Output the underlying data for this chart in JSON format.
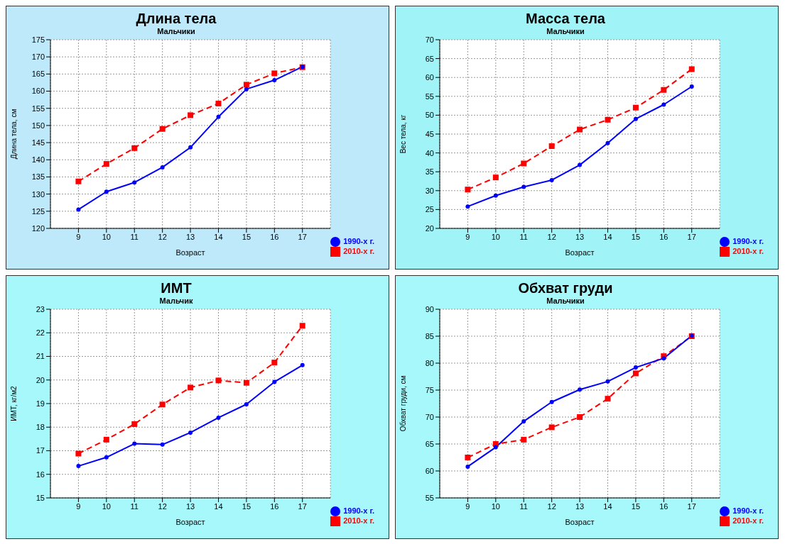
{
  "chart_data": [
    {
      "type": "line",
      "title": "Длина тела",
      "subtitle": "Мальчики",
      "xlabel": "Возраст",
      "ylabel": "Длина тела, см",
      "x": [
        9,
        10,
        11,
        12,
        13,
        14,
        15,
        16,
        17
      ],
      "xlim": [
        8,
        18
      ],
      "xticks": [
        9,
        10,
        11,
        12,
        13,
        14,
        15,
        16,
        17
      ],
      "ylim": [
        120,
        175
      ],
      "yticks": [
        120,
        125,
        130,
        135,
        140,
        145,
        150,
        155,
        160,
        165,
        170,
        175
      ],
      "grid": true,
      "legend": "bottom right",
      "series": [
        {
          "name": "1990-х г.",
          "color": "#0000ff",
          "marker": "circle",
          "line_style": "solid",
          "values": [
            125.5,
            130.7,
            133.4,
            137.8,
            143.6,
            152.5,
            160.6,
            163.2,
            167.1
          ]
        },
        {
          "name": "2010-х г.",
          "color": "#ff0000",
          "marker": "square",
          "line_style": "dashed",
          "values": [
            133.7,
            138.8,
            143.4,
            149.0,
            153.0,
            156.4,
            161.9,
            165.2,
            167.0
          ]
        }
      ]
    },
    {
      "type": "line",
      "title": "Масса тела",
      "subtitle": "Мальчики",
      "xlabel": "Возраст",
      "ylabel": "Вес тела, кг",
      "x": [
        9,
        10,
        11,
        12,
        13,
        14,
        15,
        16,
        17
      ],
      "xlim": [
        8,
        18
      ],
      "xticks": [
        9,
        10,
        11,
        12,
        13,
        14,
        15,
        16,
        17
      ],
      "ylim": [
        20,
        70
      ],
      "yticks": [
        20,
        25,
        30,
        35,
        40,
        45,
        50,
        55,
        60,
        65,
        70
      ],
      "grid": true,
      "legend": "bottom right",
      "series": [
        {
          "name": "1990-х г.",
          "color": "#0000ff",
          "marker": "circle",
          "line_style": "solid",
          "values": [
            25.8,
            28.7,
            31.0,
            32.8,
            36.8,
            42.6,
            49.0,
            52.8,
            57.6
          ]
        },
        {
          "name": "2010-х г.",
          "color": "#ff0000",
          "marker": "square",
          "line_style": "dashed",
          "values": [
            30.3,
            33.5,
            37.2,
            41.8,
            46.2,
            48.8,
            52.0,
            56.7,
            62.2
          ]
        }
      ]
    },
    {
      "type": "line",
      "title": "ИМТ",
      "subtitle": "Мальчик",
      "xlabel": "Возраст",
      "ylabel": "ИМТ, кг/м2",
      "x": [
        9,
        10,
        11,
        12,
        13,
        14,
        15,
        16,
        17
      ],
      "xlim": [
        8,
        18
      ],
      "xticks": [
        9,
        10,
        11,
        12,
        13,
        14,
        15,
        16,
        17
      ],
      "ylim": [
        15,
        23
      ],
      "yticks": [
        15,
        16,
        17,
        18,
        19,
        20,
        21,
        22,
        23
      ],
      "grid": true,
      "legend": "bottom right",
      "series": [
        {
          "name": "1990-х г.",
          "color": "#0000ff",
          "marker": "circle",
          "line_style": "solid",
          "values": [
            16.35,
            16.72,
            17.3,
            17.26,
            17.77,
            18.4,
            18.97,
            19.92,
            20.63
          ]
        },
        {
          "name": "2010-х г.",
          "color": "#ff0000",
          "marker": "square",
          "line_style": "dashed",
          "values": [
            16.88,
            17.47,
            18.13,
            18.96,
            19.68,
            19.98,
            19.88,
            20.74,
            22.3
          ]
        }
      ]
    },
    {
      "type": "line",
      "title": "Обхват груди",
      "subtitle": "Мальчики",
      "xlabel": "Возраст",
      "ylabel": "Обхват груди, см",
      "x": [
        9,
        10,
        11,
        12,
        13,
        14,
        15,
        16,
        17
      ],
      "xlim": [
        8,
        18
      ],
      "xticks": [
        9,
        10,
        11,
        12,
        13,
        14,
        15,
        16,
        17
      ],
      "ylim": [
        55,
        90
      ],
      "yticks": [
        55,
        60,
        65,
        70,
        75,
        80,
        85,
        90
      ],
      "grid": true,
      "legend": "bottom right",
      "series": [
        {
          "name": "1990-х г.",
          "color": "#0000ff",
          "marker": "circle",
          "line_style": "solid",
          "values": [
            60.8,
            64.4,
            69.2,
            72.8,
            75.1,
            76.6,
            79.2,
            80.9,
            85.1
          ]
        },
        {
          "name": "2010-х г.",
          "color": "#ff0000",
          "marker": "square",
          "line_style": "dashed",
          "values": [
            62.5,
            65.0,
            65.8,
            68.1,
            70.0,
            73.4,
            78.1,
            81.3,
            85.0
          ]
        }
      ]
    }
  ]
}
